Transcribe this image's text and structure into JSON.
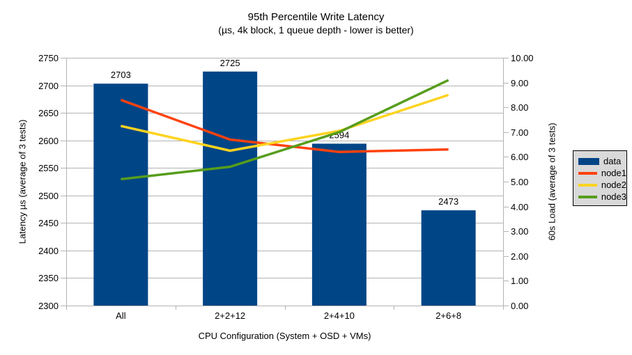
{
  "chart_data": {
    "type": "combo-bar-line",
    "title": "95th Percentile Write Latency",
    "subtitle": "(µs, 4k block, 1 queue depth - lower is better)",
    "categories": [
      "All",
      "2+2+12",
      "2+4+10",
      "2+6+8"
    ],
    "xlabel": "CPU Configuration (System + OSD + VMs)",
    "left_axis": {
      "label": "Latency µs (average of 3 tests)",
      "min": 2300,
      "max": 2750,
      "step": 50,
      "tick_labels": [
        "2300",
        "2350",
        "2400",
        "2450",
        "2500",
        "2550",
        "2600",
        "2650",
        "2700",
        "2750"
      ]
    },
    "right_axis": {
      "label": "60s Load (average of 3 tests)",
      "min": 0,
      "max": 10,
      "step": 1,
      "tick_labels": [
        "0.00",
        "1.00",
        "2.00",
        "3.00",
        "4.00",
        "5.00",
        "6.00",
        "7.00",
        "8.00",
        "9.00",
        "10.00"
      ]
    },
    "bar_series": {
      "name": "data",
      "axis": "left",
      "color": "#004586",
      "values": [
        2703,
        2725,
        2594,
        2473
      ],
      "value_labels": [
        "2703",
        "2725",
        "2594",
        "2473"
      ]
    },
    "line_series": [
      {
        "name": "node1",
        "axis": "right",
        "color": "#ff420e",
        "values": [
          8.3,
          6.7,
          6.2,
          6.3
        ]
      },
      {
        "name": "node2",
        "axis": "right",
        "color": "#ffd320",
        "values": [
          7.25,
          6.25,
          7.05,
          8.5
        ]
      },
      {
        "name": "node3",
        "axis": "right",
        "color": "#579d1c",
        "values": [
          5.1,
          5.6,
          7.0,
          9.1
        ]
      }
    ],
    "legend": {
      "entries": [
        "data",
        "node1",
        "node2",
        "node3"
      ],
      "position": "right",
      "background": "#d9d9d9",
      "border_color": "#000000"
    },
    "grid": {
      "show": true,
      "color": "#b3b3b3"
    },
    "axis_line_color": "#b3b3b3",
    "text_color": "#000000",
    "background": "#ffffff"
  }
}
